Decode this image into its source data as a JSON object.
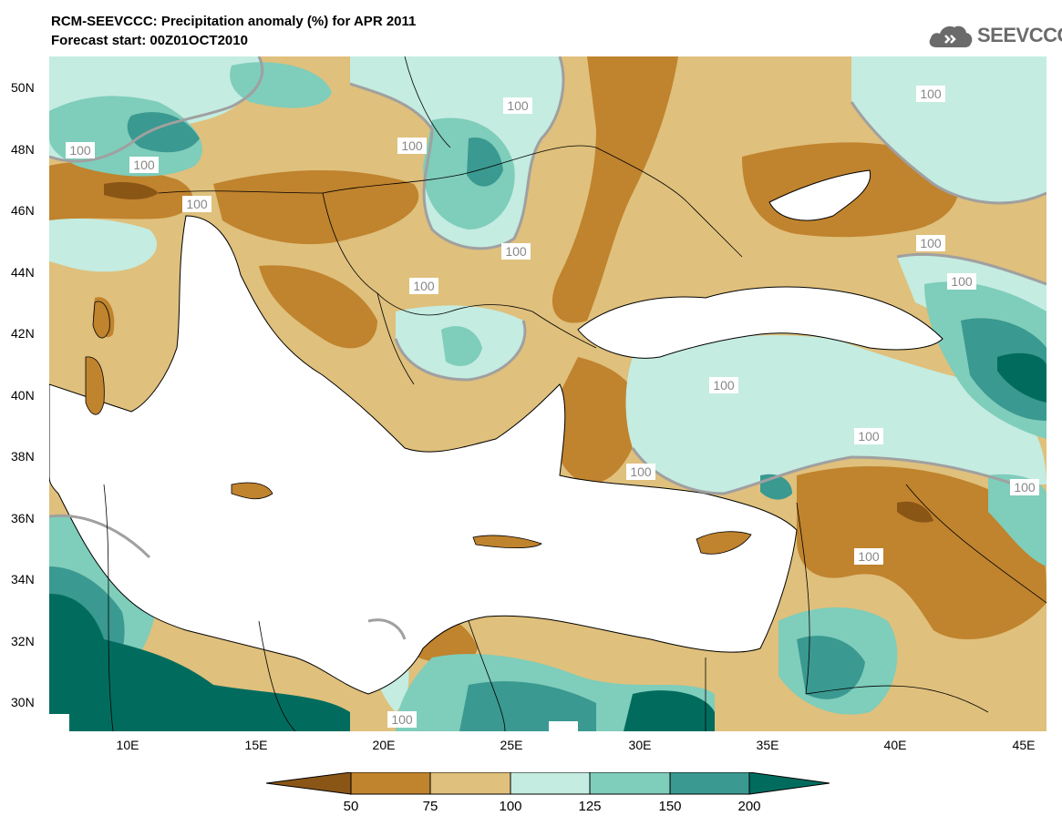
{
  "title_line1": "RCM-SEEVCCC: Precipitation anomaly (%) for APR 2011",
  "title_line2": "Forecast start: 00Z01OCT2010",
  "logo_text": "SEEVCCC",
  "lat_labels": [
    "50N",
    "48N",
    "46N",
    "44N",
    "42N",
    "40N",
    "38N",
    "36N",
    "34N",
    "32N",
    "30N"
  ],
  "lon_labels": [
    "10E",
    "15E",
    "20E",
    "25E",
    "30E",
    "35E",
    "40E",
    "45E"
  ],
  "contour_label": "100",
  "colorbar": {
    "labels": [
      "50",
      "75",
      "100",
      "125",
      "150",
      "200"
    ],
    "colors": [
      "#8a5616",
      "#c0832e",
      "#dfc07c",
      "#c4ece1",
      "#7fcdbb",
      "#3a9990",
      "#016c5e"
    ]
  }
}
